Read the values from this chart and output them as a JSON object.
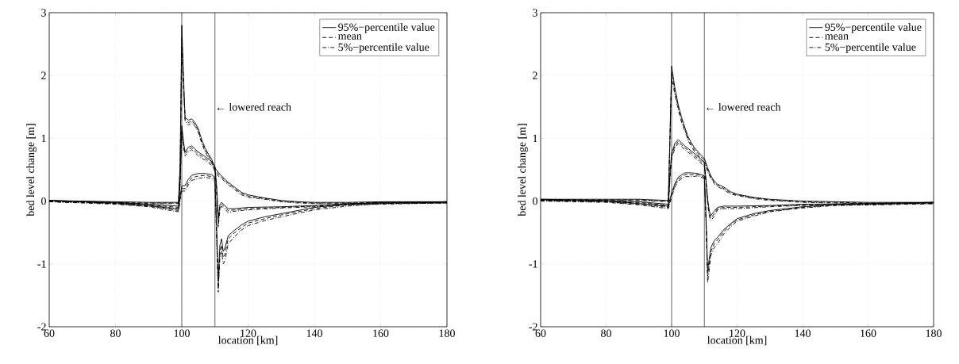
{
  "chart_data": [
    {
      "type": "line",
      "xlabel": "location [km]",
      "ylabel": "bed level change [m]",
      "xlim": [
        60,
        180
      ],
      "ylim": [
        -2,
        3
      ],
      "xticks": [
        60,
        80,
        100,
        120,
        140,
        160,
        180
      ],
      "yticks": [
        -2,
        -1,
        0,
        1,
        2,
        3
      ],
      "grid": true,
      "legend": "top right",
      "ref_lines": [
        {
          "axis": "x",
          "value": 100,
          "color": "#000000"
        },
        {
          "axis": "x",
          "value": 110,
          "color": "#000000"
        }
      ],
      "annotations": [
        {
          "text": "← lowered reach",
          "x": 110,
          "y": 1.5
        }
      ],
      "series": [
        {
          "name": "95%−percentile value",
          "color": "#000000",
          "line_style": "solid",
          "x": [
            60,
            80,
            90,
            99,
            99.5,
            100,
            100.5,
            101,
            102,
            103,
            104,
            105,
            106,
            107,
            108,
            109,
            110,
            111,
            112,
            114,
            116,
            118,
            120,
            125,
            130,
            135,
            140,
            150,
            160,
            180
          ],
          "values": [
            0.01,
            -0.01,
            -0.02,
            -0.02,
            0.6,
            2.8,
            2.0,
            1.33,
            1.29,
            1.31,
            1.25,
            1.15,
            0.98,
            0.85,
            0.75,
            0.67,
            0.53,
            0.46,
            0.4,
            0.3,
            0.22,
            0.14,
            0.1,
            0.05,
            0.01,
            -0.01,
            -0.02,
            -0.02,
            -0.01,
            -0.01
          ]
        },
        {
          "name": "mean",
          "color": "#000000",
          "line_style": "dashed",
          "x": [
            60,
            80,
            90,
            99,
            99.5,
            100,
            100.5,
            101,
            102,
            103,
            104,
            105,
            106,
            107,
            108,
            109,
            110,
            111,
            112,
            114,
            116,
            118,
            120,
            125,
            130,
            135,
            140,
            150,
            160,
            180
          ],
          "values": [
            0,
            -0.02,
            -0.03,
            -0.03,
            0.5,
            2.6,
            1.9,
            1.3,
            1.25,
            1.28,
            1.22,
            1.12,
            0.95,
            0.82,
            0.72,
            0.65,
            0.5,
            0.43,
            0.38,
            0.28,
            0.2,
            0.12,
            0.08,
            0.04,
            0,
            -0.02,
            -0.03,
            -0.03,
            -0.02,
            -0.02
          ]
        },
        {
          "name": "5%−percentile value",
          "color": "#000000",
          "line_style": "dashdot",
          "x": [
            60,
            80,
            90,
            99,
            99.5,
            100,
            100.5,
            101,
            102,
            103,
            104,
            105,
            106,
            107,
            108,
            109,
            110,
            111,
            112,
            114,
            116,
            118,
            120,
            125,
            130,
            135,
            140,
            150,
            160,
            180
          ],
          "values": [
            -0.01,
            -0.03,
            -0.04,
            -0.04,
            0.4,
            2.45,
            1.8,
            1.27,
            1.21,
            1.25,
            1.19,
            1.09,
            0.92,
            0.79,
            0.69,
            0.63,
            0.47,
            0.4,
            0.36,
            0.26,
            0.18,
            0.1,
            0.06,
            0.03,
            -0.01,
            -0.03,
            -0.04,
            -0.04,
            -0.03,
            -0.03
          ]
        },
        {
          "color": "#000000",
          "line_style": "solid",
          "x": [
            60,
            80,
            90,
            99,
            99.5,
            100,
            100.5,
            101,
            102,
            103,
            104,
            105,
            107,
            109,
            110,
            110.5,
            111,
            111.5,
            112,
            113,
            114,
            116,
            120,
            130,
            140,
            150,
            160,
            180
          ],
          "values": [
            0.01,
            -0.02,
            -0.05,
            -0.08,
            0.35,
            1.2,
            0.95,
            0.78,
            0.86,
            0.88,
            0.83,
            0.78,
            0.71,
            0.63,
            0.55,
            0.25,
            -0.28,
            -0.06,
            -0.02,
            -0.07,
            -0.12,
            -0.12,
            -0.1,
            -0.09,
            -0.07,
            -0.04,
            -0.03,
            -0.01
          ]
        },
        {
          "color": "#000000",
          "line_style": "dashed",
          "x": [
            60,
            80,
            90,
            99,
            99.5,
            100,
            100.5,
            101,
            102,
            103,
            104,
            105,
            107,
            109,
            110,
            110.5,
            111,
            111.5,
            112,
            113,
            114,
            116,
            120,
            130,
            140,
            150,
            160,
            180
          ],
          "values": [
            0,
            -0.03,
            -0.06,
            -0.1,
            0.3,
            1.15,
            0.9,
            0.75,
            0.82,
            0.85,
            0.8,
            0.75,
            0.68,
            0.6,
            0.52,
            0.2,
            -0.35,
            -0.1,
            -0.05,
            -0.1,
            -0.15,
            -0.14,
            -0.12,
            -0.1,
            -0.08,
            -0.05,
            -0.04,
            -0.02
          ]
        },
        {
          "color": "#000000",
          "line_style": "dashdot",
          "x": [
            60,
            80,
            90,
            99,
            99.5,
            100,
            100.5,
            101,
            102,
            103,
            104,
            105,
            107,
            109,
            110,
            110.5,
            111,
            111.5,
            112,
            113,
            114,
            116,
            120,
            130,
            140,
            150,
            160,
            180
          ],
          "values": [
            -0.01,
            -0.04,
            -0.07,
            -0.12,
            0.25,
            1.1,
            0.85,
            0.72,
            0.78,
            0.82,
            0.77,
            0.72,
            0.65,
            0.57,
            0.49,
            0.15,
            -0.42,
            -0.14,
            -0.08,
            -0.13,
            -0.18,
            -0.16,
            -0.14,
            -0.11,
            -0.09,
            -0.06,
            -0.05,
            -0.03
          ]
        },
        {
          "color": "#000000",
          "line_style": "solid",
          "x": [
            60,
            80,
            90,
            99,
            99.5,
            100,
            101,
            102,
            103,
            105,
            107,
            109,
            110,
            110.5,
            111,
            111.5,
            112,
            112.5,
            113,
            114,
            116,
            118,
            120,
            125,
            130,
            140,
            150,
            160,
            180
          ],
          "values": [
            0.01,
            -0.03,
            -0.07,
            -0.13,
            0.08,
            0.24,
            0.25,
            0.35,
            0.41,
            0.44,
            0.44,
            0.42,
            0.38,
            -0.4,
            -1.25,
            -0.7,
            -0.6,
            -0.8,
            -0.75,
            -0.55,
            -0.46,
            -0.38,
            -0.32,
            -0.25,
            -0.2,
            -0.1,
            -0.05,
            -0.02,
            -0.01
          ]
        },
        {
          "color": "#000000",
          "line_style": "dashed",
          "x": [
            60,
            80,
            90,
            99,
            99.5,
            100,
            101,
            102,
            103,
            105,
            107,
            109,
            110,
            110.5,
            111,
            111.5,
            112,
            112.5,
            113,
            114,
            116,
            118,
            120,
            125,
            130,
            140,
            150,
            160,
            180
          ],
          "values": [
            0,
            -0.04,
            -0.08,
            -0.15,
            0.05,
            0.2,
            0.2,
            0.3,
            0.37,
            0.4,
            0.41,
            0.39,
            0.35,
            -0.5,
            -1.4,
            -0.8,
            -0.7,
            -0.9,
            -0.85,
            -0.6,
            -0.5,
            -0.42,
            -0.35,
            -0.28,
            -0.22,
            -0.12,
            -0.06,
            -0.03,
            -0.02
          ]
        },
        {
          "color": "#000000",
          "line_style": "dashdot",
          "x": [
            60,
            80,
            90,
            99,
            99.5,
            100,
            101,
            102,
            103,
            105,
            107,
            109,
            110,
            110.5,
            111,
            111.5,
            112,
            112.5,
            113,
            114,
            116,
            118,
            120,
            125,
            130,
            140,
            150,
            160,
            180
          ],
          "values": [
            -0.01,
            -0.05,
            -0.09,
            -0.17,
            0.02,
            0.16,
            0.16,
            0.26,
            0.33,
            0.36,
            0.38,
            0.36,
            0.32,
            -0.6,
            -1.45,
            -0.9,
            -0.8,
            -1.0,
            -0.95,
            -0.68,
            -0.56,
            -0.46,
            -0.39,
            -0.31,
            -0.25,
            -0.14,
            -0.08,
            -0.04,
            -0.03
          ]
        }
      ]
    },
    {
      "type": "line",
      "xlabel": "location [km]",
      "ylabel": "bed level change [m]",
      "xlim": [
        60,
        180
      ],
      "ylim": [
        -2,
        3
      ],
      "xticks": [
        60,
        80,
        100,
        120,
        140,
        160,
        180
      ],
      "yticks": [
        -2,
        -1,
        0,
        1,
        2,
        3
      ],
      "grid": true,
      "legend": "top right",
      "ref_lines": [
        {
          "axis": "x",
          "value": 100,
          "color": "#000000"
        },
        {
          "axis": "x",
          "value": 110,
          "color": "#000000"
        }
      ],
      "annotations": [
        {
          "text": "← lowered reach",
          "x": 110,
          "y": 1.5
        }
      ],
      "series": [
        {
          "name": "95%−percentile value",
          "color": "#000000",
          "line_style": "solid",
          "x": [
            60,
            80,
            90,
            99,
            99.5,
            100,
            101,
            102,
            103,
            104,
            105,
            106,
            107,
            108,
            109,
            110,
            111,
            112,
            113,
            114,
            116,
            118,
            120,
            125,
            130,
            140,
            150,
            160,
            180
          ],
          "values": [
            0.03,
            0.03,
            0.03,
            0.01,
            1.05,
            2.15,
            1.8,
            1.54,
            1.34,
            1.18,
            1.03,
            0.93,
            0.85,
            0.79,
            0.73,
            0.68,
            0.53,
            0.4,
            0.32,
            0.27,
            0.22,
            0.15,
            0.11,
            0.06,
            0.03,
            0,
            -0.01,
            -0.02,
            -0.02
          ]
        },
        {
          "name": "mean",
          "color": "#000000",
          "line_style": "dashed",
          "x": [
            60,
            80,
            90,
            99,
            99.5,
            100,
            101,
            102,
            103,
            104,
            105,
            106,
            107,
            108,
            109,
            110,
            111,
            112,
            113,
            114,
            116,
            118,
            120,
            125,
            130,
            140,
            150,
            160,
            180
          ],
          "values": [
            0.02,
            0.02,
            0.02,
            0,
            1.0,
            2.05,
            1.75,
            1.5,
            1.3,
            1.15,
            1.0,
            0.9,
            0.82,
            0.76,
            0.7,
            0.65,
            0.5,
            0.38,
            0.3,
            0.25,
            0.2,
            0.13,
            0.1,
            0.05,
            0.02,
            -0.01,
            -0.02,
            -0.03,
            -0.03
          ]
        },
        {
          "name": "5%−percentile value",
          "color": "#000000",
          "line_style": "dashdot",
          "x": [
            60,
            80,
            90,
            99,
            99.5,
            100,
            101,
            102,
            103,
            104,
            105,
            106,
            107,
            108,
            109,
            110,
            111,
            112,
            113,
            114,
            116,
            118,
            120,
            125,
            130,
            140,
            150,
            160,
            180
          ],
          "values": [
            0.01,
            0.01,
            0.01,
            -0.01,
            0.95,
            1.95,
            1.7,
            1.46,
            1.26,
            1.12,
            0.97,
            0.87,
            0.79,
            0.73,
            0.67,
            0.62,
            0.47,
            0.36,
            0.28,
            0.23,
            0.18,
            0.11,
            0.09,
            0.04,
            0.01,
            -0.02,
            -0.03,
            -0.04,
            -0.04
          ]
        },
        {
          "color": "#000000",
          "line_style": "solid",
          "x": [
            60,
            80,
            90,
            99,
            99.5,
            100,
            101,
            102,
            103,
            104,
            106,
            108,
            110,
            110.5,
            111,
            111.5,
            112,
            113,
            114,
            116,
            120,
            130,
            140,
            160,
            180
          ],
          "values": [
            0.03,
            0.01,
            -0.01,
            -0.05,
            0.45,
            0.76,
            0.92,
            0.98,
            0.93,
            0.88,
            0.8,
            0.71,
            0.61,
            0.34,
            0.04,
            -0.16,
            -0.23,
            -0.16,
            -0.1,
            -0.08,
            -0.08,
            -0.07,
            -0.05,
            -0.04,
            -0.02
          ]
        },
        {
          "color": "#000000",
          "line_style": "dashed",
          "x": [
            60,
            80,
            90,
            99,
            99.5,
            100,
            101,
            102,
            103,
            104,
            106,
            108,
            110,
            110.5,
            111,
            111.5,
            112,
            113,
            114,
            116,
            120,
            130,
            140,
            160,
            180
          ],
          "values": [
            0.02,
            0,
            -0.02,
            -0.07,
            0.4,
            0.72,
            0.88,
            0.95,
            0.9,
            0.85,
            0.77,
            0.68,
            0.58,
            0.3,
            0,
            -0.2,
            -0.27,
            -0.2,
            -0.12,
            -0.1,
            -0.1,
            -0.08,
            -0.06,
            -0.05,
            -0.03
          ]
        },
        {
          "color": "#000000",
          "line_style": "dashdot",
          "x": [
            60,
            80,
            90,
            99,
            99.5,
            100,
            101,
            102,
            103,
            104,
            106,
            108,
            110,
            110.5,
            111,
            111.5,
            112,
            113,
            114,
            116,
            120,
            130,
            140,
            160,
            180
          ],
          "values": [
            0.01,
            -0.01,
            -0.03,
            -0.09,
            0.35,
            0.68,
            0.84,
            0.92,
            0.87,
            0.82,
            0.74,
            0.65,
            0.55,
            0.26,
            -0.04,
            -0.24,
            -0.31,
            -0.24,
            -0.14,
            -0.12,
            -0.12,
            -0.09,
            -0.07,
            -0.06,
            -0.04
          ]
        },
        {
          "color": "#000000",
          "line_style": "solid",
          "x": [
            60,
            80,
            90,
            99,
            99.5,
            100,
            101,
            102,
            104,
            106,
            108,
            110,
            110.5,
            111,
            111.5,
            112,
            113,
            114,
            116,
            118,
            120,
            125,
            130,
            140,
            150,
            160,
            180
          ],
          "values": [
            0.02,
            0,
            -0.04,
            -0.08,
            0.03,
            0.13,
            0.28,
            0.38,
            0.45,
            0.45,
            0.44,
            0.4,
            -0.25,
            -1.1,
            -0.92,
            -0.74,
            -0.63,
            -0.58,
            -0.45,
            -0.36,
            -0.28,
            -0.2,
            -0.15,
            -0.09,
            -0.05,
            -0.04,
            -0.02
          ]
        },
        {
          "color": "#000000",
          "line_style": "dashed",
          "x": [
            60,
            80,
            90,
            99,
            99.5,
            100,
            101,
            102,
            104,
            106,
            108,
            110,
            110.5,
            111,
            111.5,
            112,
            113,
            114,
            116,
            118,
            120,
            125,
            130,
            140,
            150,
            160,
            180
          ],
          "values": [
            0.01,
            -0.01,
            -0.05,
            -0.1,
            0,
            0.1,
            0.25,
            0.35,
            0.42,
            0.42,
            0.42,
            0.38,
            -0.3,
            -1.2,
            -1.0,
            -0.8,
            -0.68,
            -0.62,
            -0.48,
            -0.38,
            -0.3,
            -0.22,
            -0.16,
            -0.1,
            -0.06,
            -0.05,
            -0.03
          ]
        },
        {
          "color": "#000000",
          "line_style": "dashdot",
          "x": [
            60,
            80,
            90,
            99,
            99.5,
            100,
            101,
            102,
            104,
            106,
            108,
            110,
            110.5,
            111,
            111.5,
            112,
            113,
            114,
            116,
            118,
            120,
            125,
            130,
            140,
            150,
            160,
            180
          ],
          "values": [
            0,
            -0.02,
            -0.06,
            -0.12,
            -0.03,
            0.07,
            0.22,
            0.32,
            0.39,
            0.39,
            0.4,
            0.36,
            -0.35,
            -1.3,
            -1.08,
            -0.86,
            -0.74,
            -0.68,
            -0.52,
            -0.41,
            -0.32,
            -0.24,
            -0.17,
            -0.11,
            -0.07,
            -0.06,
            -0.04
          ]
        }
      ]
    }
  ]
}
